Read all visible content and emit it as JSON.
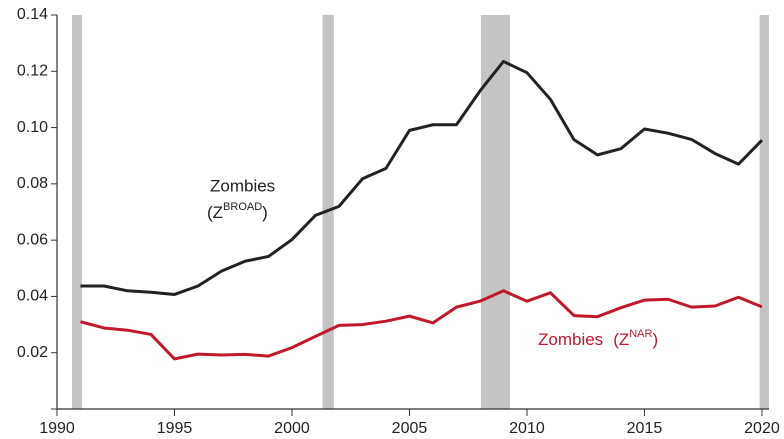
{
  "chart_data": {
    "type": "line",
    "x": [
      1991,
      1992,
      1993,
      1994,
      1995,
      1996,
      1997,
      1998,
      1999,
      2000,
      2001,
      2002,
      2003,
      2004,
      2005,
      2006,
      2007,
      2008,
      2009,
      2010,
      2011,
      2012,
      2013,
      2014,
      2015,
      2016,
      2017,
      2018,
      2019,
      2020
    ],
    "series": [
      {
        "color": "#222222",
        "label": {
          "line1": "Zombies",
          "base": "(Z",
          "sup": "BROAD",
          "end": ")"
        },
        "values": [
          0.0437,
          0.0437,
          0.042,
          0.0415,
          0.0407,
          0.0437,
          0.049,
          0.0525,
          0.0542,
          0.0602,
          0.0688,
          0.072,
          0.0818,
          0.0855,
          0.099,
          0.101,
          0.101,
          0.113,
          0.1235,
          0.1195,
          0.11,
          0.0957,
          0.0903,
          0.0925,
          0.0995,
          0.098,
          0.0958,
          0.0908,
          0.087,
          0.0955
        ]
      },
      {
        "color": "#c0192a",
        "label": {
          "line1": "Zombies",
          "base": "(Z",
          "sup": "NAR",
          "end": ")"
        },
        "values": [
          0.031,
          0.0288,
          0.028,
          0.0265,
          0.0178,
          0.0195,
          0.0192,
          0.0194,
          0.0188,
          0.0218,
          0.0258,
          0.0297,
          0.03,
          0.0312,
          0.033,
          0.0306,
          0.0362,
          0.0383,
          0.042,
          0.0383,
          0.0413,
          0.0332,
          0.0328,
          0.036,
          0.0387,
          0.039,
          0.0362,
          0.0366,
          0.0397,
          0.0363
        ]
      }
    ],
    "shaded": [
      [
        1990.64,
        1991.06
      ],
      [
        2001.3,
        2001.78
      ],
      [
        2008.04,
        2009.28
      ],
      [
        2019.9,
        2020.3
      ]
    ],
    "shade_color": "#c4c4c4",
    "xlim": [
      1990,
      2020.3
    ],
    "ylim": [
      0,
      0.14
    ],
    "xticks": [
      1990,
      1995,
      2000,
      2005,
      2010,
      2015,
      2020
    ],
    "yticks": [
      {
        "value": 0.02,
        "label": "0.02"
      },
      {
        "value": 0.04,
        "label": "0.04"
      },
      {
        "value": 0.06,
        "label": "0.06"
      },
      {
        "value": 0.08,
        "label": "0.08"
      },
      {
        "value": 0.1,
        "label": "0.10"
      },
      {
        "value": 0.12,
        "label": "0.12"
      },
      {
        "value": 0.14,
        "label": "0.14"
      }
    ]
  }
}
